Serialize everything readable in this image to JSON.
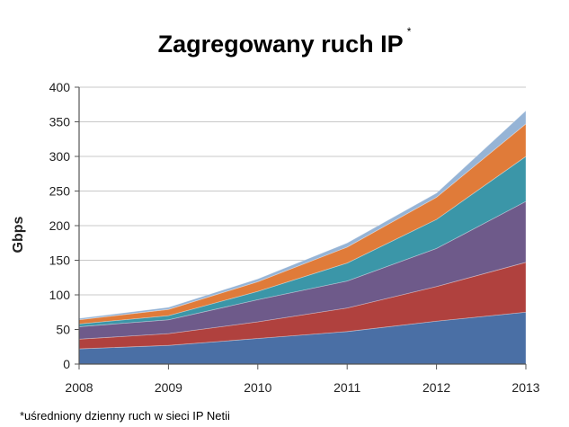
{
  "title": "Zagregowany ruch IP",
  "title_marker": "*",
  "footnote": "*uśredniony dzienny ruch w sieci IP Netii",
  "chart_data": {
    "type": "area",
    "stacked": true,
    "ylabel": "Gbps",
    "xlabel": "",
    "x": [
      2008,
      2009,
      2010,
      2011,
      2012,
      2013
    ],
    "ylim": [
      0,
      400
    ],
    "yticks": [
      0,
      50,
      100,
      150,
      200,
      250,
      300,
      350,
      400
    ],
    "grid": true,
    "legend": "none",
    "series": [
      {
        "color": "#4a6fa5",
        "values": [
          22,
          27,
          37,
          47,
          62,
          75
        ]
      },
      {
        "color": "#b0413e",
        "values": [
          14,
          17,
          24,
          34,
          50,
          72
        ]
      },
      {
        "color": "#6e5a8a",
        "values": [
          18,
          20,
          32,
          39,
          55,
          88
        ]
      },
      {
        "color": "#3b96a8",
        "values": [
          4,
          6,
          12,
          26,
          42,
          65
        ]
      },
      {
        "color": "#e07b39",
        "values": [
          6,
          9,
          14,
          23,
          32,
          47
        ]
      },
      {
        "color": "#96b4d6",
        "values": [
          2,
          3,
          4,
          6,
          6,
          19
        ]
      }
    ]
  }
}
